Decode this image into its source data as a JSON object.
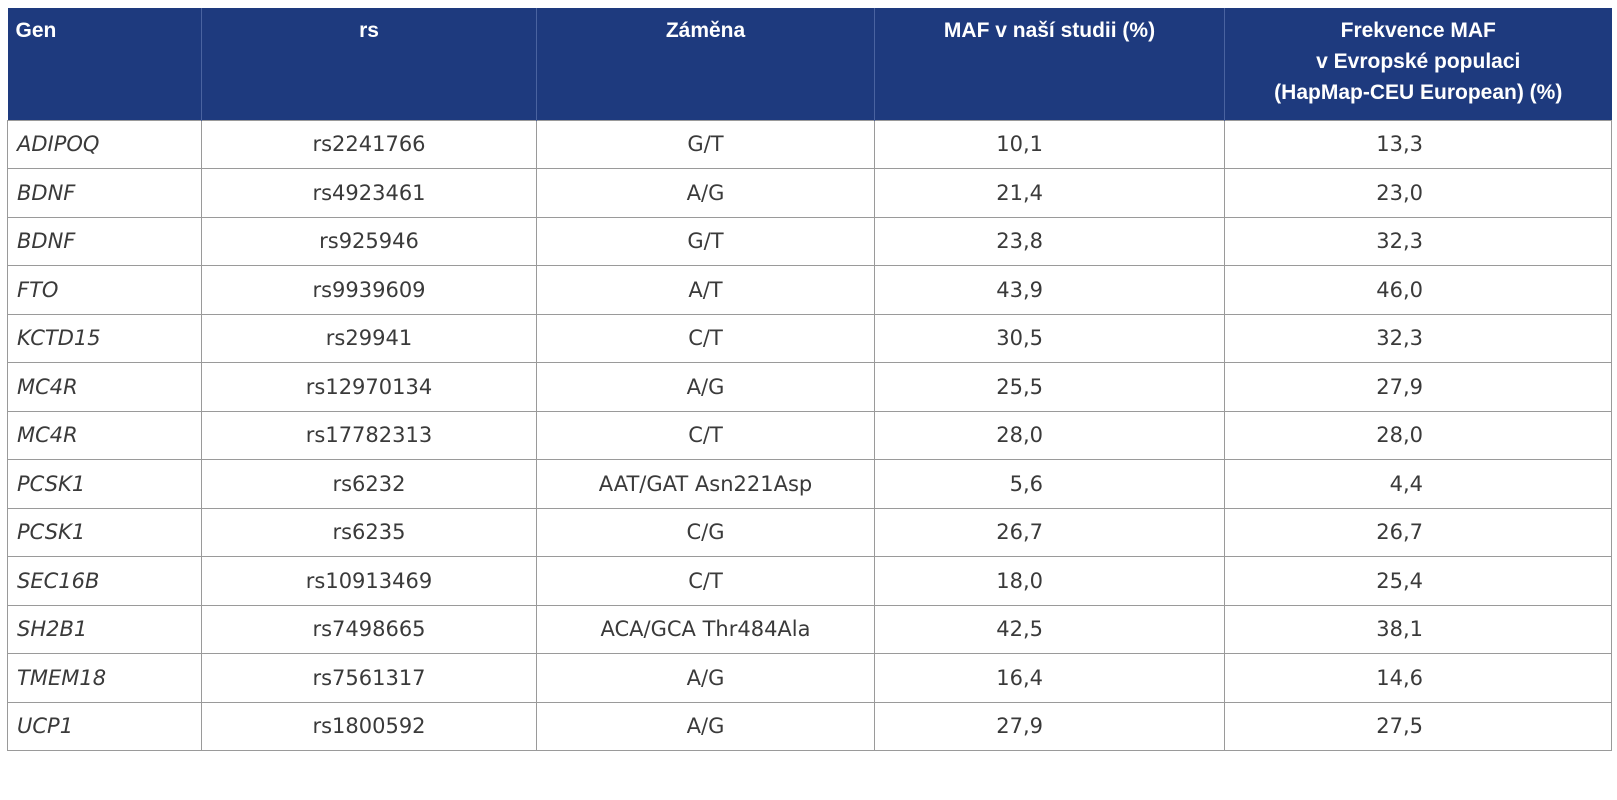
{
  "table": {
    "headers": {
      "gen": "Gen",
      "rs": "rs",
      "zamena": "Záměna",
      "maf": "MAF v naší studii (%)",
      "freq_line1": "Frekvence MAF",
      "freq_line2": "v Evropské populaci",
      "freq_line3": "(HapMap-CEU European) (%)"
    },
    "rows": [
      {
        "gen": "ADIPOQ",
        "rs": "rs2241766",
        "zamena": "G/T",
        "maf": "10,1",
        "freq": "13,3"
      },
      {
        "gen": "BDNF",
        "rs": "rs4923461",
        "zamena": "A/G",
        "maf": "21,4",
        "freq": "23,0"
      },
      {
        "gen": "BDNF",
        "rs": "rs925946",
        "zamena": "G/T",
        "maf": "23,8",
        "freq": "32,3"
      },
      {
        "gen": "FTO",
        "rs": "rs9939609",
        "zamena": "A/T",
        "maf": "43,9",
        "freq": "46,0"
      },
      {
        "gen": "KCTD15",
        "rs": "rs29941",
        "zamena": "C/T",
        "maf": "30,5",
        "freq": "32,3"
      },
      {
        "gen": "MC4R",
        "rs": "rs12970134",
        "zamena": "A/G",
        "maf": "25,5",
        "freq": "27,9"
      },
      {
        "gen": "MC4R",
        "rs": "rs17782313",
        "zamena": "C/T",
        "maf": "28,0",
        "freq": "28,0"
      },
      {
        "gen": "PCSK1",
        "rs": "rs6232",
        "zamena": "AAT/GAT Asn221Asp",
        "maf": "5,6",
        "freq": "4,4"
      },
      {
        "gen": "PCSK1",
        "rs": "rs6235",
        "zamena": "C/G",
        "maf": "26,7",
        "freq": "26,7"
      },
      {
        "gen": "SEC16B",
        "rs": "rs10913469",
        "zamena": "C/T",
        "maf": "18,0",
        "freq": "25,4"
      },
      {
        "gen": "SH2B1",
        "rs": "rs7498665",
        "zamena": "ACA/GCA Thr484Ala",
        "maf": "42,5",
        "freq": "38,1"
      },
      {
        "gen": "TMEM18",
        "rs": "rs7561317",
        "zamena": "A/G",
        "maf": "16,4",
        "freq": "14,6"
      },
      {
        "gen": "UCP1",
        "rs": "rs1800592",
        "zamena": "A/G",
        "maf": "27,9",
        "freq": "27,5"
      }
    ]
  },
  "colors": {
    "header_bg": "#1e3a7e",
    "header_text": "#ffffff",
    "cell_text": "#3a3a3a",
    "border": "#9a9a9a"
  }
}
